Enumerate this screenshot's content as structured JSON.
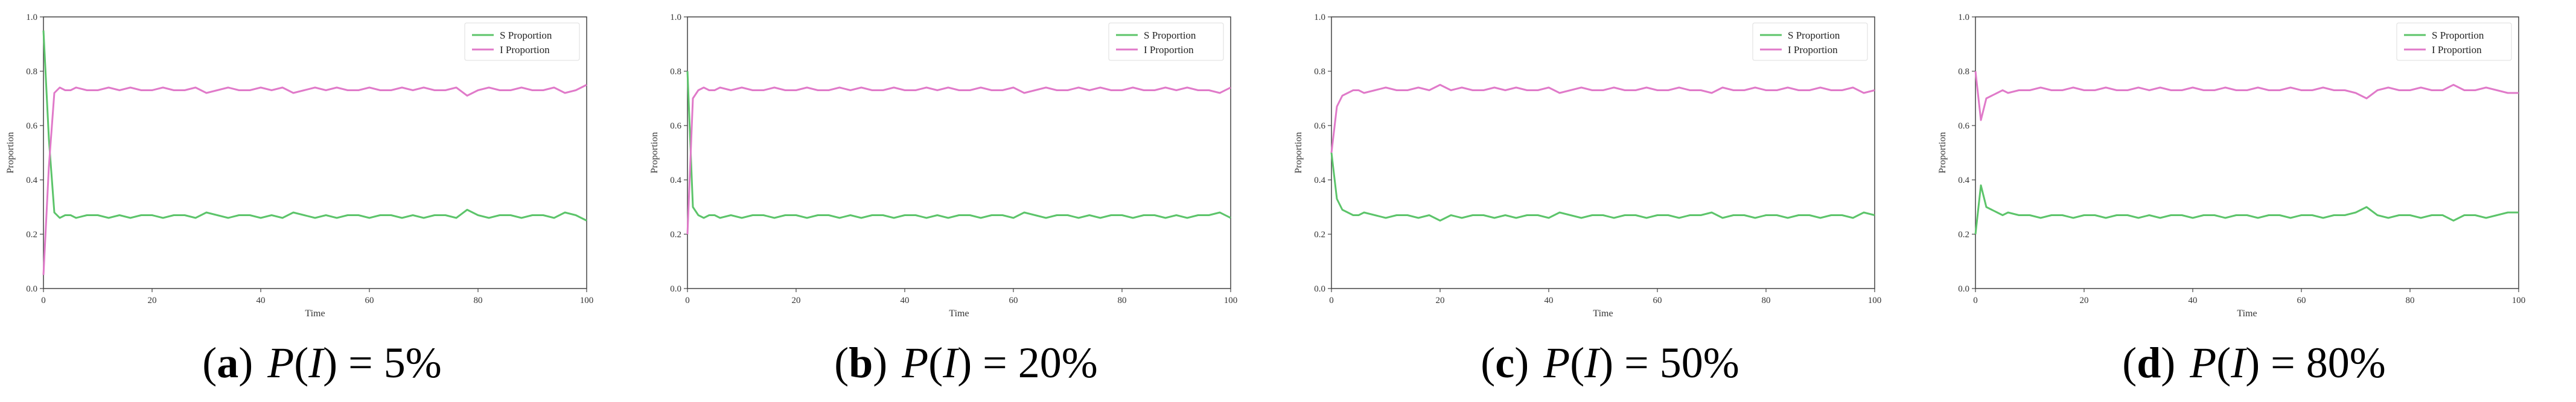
{
  "chart_data": [
    {
      "type": "line",
      "tag": "a",
      "caption": "P(I) = 5%",
      "caption_lhs_func": "P",
      "caption_lhs_arg": "I",
      "caption_rhs": "= 5%",
      "xlabel": "Time",
      "ylabel": "Proportion",
      "xlim": [
        0,
        100
      ],
      "ylim": [
        0.0,
        1.0
      ],
      "xticks": [
        "0",
        "20",
        "40",
        "60",
        "80",
        "100"
      ],
      "yticks": [
        "0.0",
        "0.2",
        "0.4",
        "0.6",
        "0.8",
        "1.0"
      ],
      "legend_position": "top-right",
      "grid": false,
      "series": [
        {
          "name": "S Proportion",
          "color": "#5cc46a",
          "x": [
            0,
            1,
            2,
            3,
            4,
            5,
            6,
            8,
            10,
            12,
            14,
            16,
            18,
            20,
            22,
            24,
            26,
            28,
            30,
            32,
            34,
            36,
            38,
            40,
            42,
            44,
            46,
            48,
            50,
            52,
            54,
            56,
            58,
            60,
            62,
            64,
            66,
            68,
            70,
            72,
            74,
            76,
            78,
            80,
            82,
            84,
            86,
            88,
            90,
            92,
            94,
            96,
            98,
            100
          ],
          "y": [
            0.95,
            0.55,
            0.28,
            0.26,
            0.27,
            0.27,
            0.26,
            0.27,
            0.27,
            0.26,
            0.27,
            0.26,
            0.27,
            0.27,
            0.26,
            0.27,
            0.27,
            0.26,
            0.28,
            0.27,
            0.26,
            0.27,
            0.27,
            0.26,
            0.27,
            0.26,
            0.28,
            0.27,
            0.26,
            0.27,
            0.26,
            0.27,
            0.27,
            0.26,
            0.27,
            0.27,
            0.26,
            0.27,
            0.26,
            0.27,
            0.27,
            0.26,
            0.29,
            0.27,
            0.26,
            0.27,
            0.27,
            0.26,
            0.27,
            0.27,
            0.26,
            0.28,
            0.27,
            0.25
          ]
        },
        {
          "name": "I Proportion",
          "color": "#e07ac9",
          "x": [
            0,
            1,
            2,
            3,
            4,
            5,
            6,
            8,
            10,
            12,
            14,
            16,
            18,
            20,
            22,
            24,
            26,
            28,
            30,
            32,
            34,
            36,
            38,
            40,
            42,
            44,
            46,
            48,
            50,
            52,
            54,
            56,
            58,
            60,
            62,
            64,
            66,
            68,
            70,
            72,
            74,
            76,
            78,
            80,
            82,
            84,
            86,
            88,
            90,
            92,
            94,
            96,
            98,
            100
          ],
          "y": [
            0.05,
            0.45,
            0.72,
            0.74,
            0.73,
            0.73,
            0.74,
            0.73,
            0.73,
            0.74,
            0.73,
            0.74,
            0.73,
            0.73,
            0.74,
            0.73,
            0.73,
            0.74,
            0.72,
            0.73,
            0.74,
            0.73,
            0.73,
            0.74,
            0.73,
            0.74,
            0.72,
            0.73,
            0.74,
            0.73,
            0.74,
            0.73,
            0.73,
            0.74,
            0.73,
            0.73,
            0.74,
            0.73,
            0.74,
            0.73,
            0.73,
            0.74,
            0.71,
            0.73,
            0.74,
            0.73,
            0.73,
            0.74,
            0.73,
            0.73,
            0.74,
            0.72,
            0.73,
            0.75
          ]
        }
      ]
    },
    {
      "type": "line",
      "tag": "b",
      "caption": "P(I) = 20%",
      "caption_lhs_func": "P",
      "caption_lhs_arg": "I",
      "caption_rhs": "= 20%",
      "xlabel": "Time",
      "ylabel": "Proportion",
      "xlim": [
        0,
        100
      ],
      "ylim": [
        0.0,
        1.0
      ],
      "xticks": [
        "0",
        "20",
        "40",
        "60",
        "80",
        "100"
      ],
      "yticks": [
        "0.0",
        "0.2",
        "0.4",
        "0.6",
        "0.8",
        "1.0"
      ],
      "legend_position": "top-right",
      "grid": false,
      "series": [
        {
          "name": "S Proportion",
          "color": "#5cc46a",
          "x": [
            0,
            1,
            2,
            3,
            4,
            5,
            6,
            8,
            10,
            12,
            14,
            16,
            18,
            20,
            22,
            24,
            26,
            28,
            30,
            32,
            34,
            36,
            38,
            40,
            42,
            44,
            46,
            48,
            50,
            52,
            54,
            56,
            58,
            60,
            62,
            64,
            66,
            68,
            70,
            72,
            74,
            76,
            78,
            80,
            82,
            84,
            86,
            88,
            90,
            92,
            94,
            96,
            98,
            100
          ],
          "y": [
            0.8,
            0.3,
            0.27,
            0.26,
            0.27,
            0.27,
            0.26,
            0.27,
            0.26,
            0.27,
            0.27,
            0.26,
            0.27,
            0.27,
            0.26,
            0.27,
            0.27,
            0.26,
            0.27,
            0.26,
            0.27,
            0.27,
            0.26,
            0.27,
            0.27,
            0.26,
            0.27,
            0.26,
            0.27,
            0.27,
            0.26,
            0.27,
            0.27,
            0.26,
            0.28,
            0.27,
            0.26,
            0.27,
            0.27,
            0.26,
            0.27,
            0.26,
            0.27,
            0.27,
            0.26,
            0.27,
            0.27,
            0.26,
            0.27,
            0.26,
            0.27,
            0.27,
            0.28,
            0.26
          ]
        },
        {
          "name": "I Proportion",
          "color": "#e07ac9",
          "x": [
            0,
            1,
            2,
            3,
            4,
            5,
            6,
            8,
            10,
            12,
            14,
            16,
            18,
            20,
            22,
            24,
            26,
            28,
            30,
            32,
            34,
            36,
            38,
            40,
            42,
            44,
            46,
            48,
            50,
            52,
            54,
            56,
            58,
            60,
            62,
            64,
            66,
            68,
            70,
            72,
            74,
            76,
            78,
            80,
            82,
            84,
            86,
            88,
            90,
            92,
            94,
            96,
            98,
            100
          ],
          "y": [
            0.2,
            0.7,
            0.73,
            0.74,
            0.73,
            0.73,
            0.74,
            0.73,
            0.74,
            0.73,
            0.73,
            0.74,
            0.73,
            0.73,
            0.74,
            0.73,
            0.73,
            0.74,
            0.73,
            0.74,
            0.73,
            0.73,
            0.74,
            0.73,
            0.73,
            0.74,
            0.73,
            0.74,
            0.73,
            0.73,
            0.74,
            0.73,
            0.73,
            0.74,
            0.72,
            0.73,
            0.74,
            0.73,
            0.73,
            0.74,
            0.73,
            0.74,
            0.73,
            0.73,
            0.74,
            0.73,
            0.73,
            0.74,
            0.73,
            0.74,
            0.73,
            0.73,
            0.72,
            0.74
          ]
        }
      ]
    },
    {
      "type": "line",
      "tag": "c",
      "caption": "P(I) = 50%",
      "caption_lhs_func": "P",
      "caption_lhs_arg": "I",
      "caption_rhs": "= 50%",
      "xlabel": "Time",
      "ylabel": "Proportion",
      "xlim": [
        0,
        100
      ],
      "ylim": [
        0.0,
        1.0
      ],
      "xticks": [
        "0",
        "20",
        "40",
        "60",
        "80",
        "100"
      ],
      "yticks": [
        "0.0",
        "0.2",
        "0.4",
        "0.6",
        "0.8",
        "1.0"
      ],
      "legend_position": "top-right",
      "grid": false,
      "series": [
        {
          "name": "S Proportion",
          "color": "#5cc46a",
          "x": [
            0,
            1,
            2,
            3,
            4,
            5,
            6,
            8,
            10,
            12,
            14,
            16,
            18,
            20,
            22,
            24,
            26,
            28,
            30,
            32,
            34,
            36,
            38,
            40,
            42,
            44,
            46,
            48,
            50,
            52,
            54,
            56,
            58,
            60,
            62,
            64,
            66,
            68,
            70,
            72,
            74,
            76,
            78,
            80,
            82,
            84,
            86,
            88,
            90,
            92,
            94,
            96,
            98,
            100
          ],
          "y": [
            0.5,
            0.33,
            0.29,
            0.28,
            0.27,
            0.27,
            0.28,
            0.27,
            0.26,
            0.27,
            0.27,
            0.26,
            0.27,
            0.25,
            0.27,
            0.26,
            0.27,
            0.27,
            0.26,
            0.27,
            0.26,
            0.27,
            0.27,
            0.26,
            0.28,
            0.27,
            0.26,
            0.27,
            0.27,
            0.26,
            0.27,
            0.27,
            0.26,
            0.27,
            0.27,
            0.26,
            0.27,
            0.27,
            0.28,
            0.26,
            0.27,
            0.27,
            0.26,
            0.27,
            0.27,
            0.26,
            0.27,
            0.27,
            0.26,
            0.27,
            0.27,
            0.26,
            0.28,
            0.27
          ]
        },
        {
          "name": "I Proportion",
          "color": "#e07ac9",
          "x": [
            0,
            1,
            2,
            3,
            4,
            5,
            6,
            8,
            10,
            12,
            14,
            16,
            18,
            20,
            22,
            24,
            26,
            28,
            30,
            32,
            34,
            36,
            38,
            40,
            42,
            44,
            46,
            48,
            50,
            52,
            54,
            56,
            58,
            60,
            62,
            64,
            66,
            68,
            70,
            72,
            74,
            76,
            78,
            80,
            82,
            84,
            86,
            88,
            90,
            92,
            94,
            96,
            98,
            100
          ],
          "y": [
            0.5,
            0.67,
            0.71,
            0.72,
            0.73,
            0.73,
            0.72,
            0.73,
            0.74,
            0.73,
            0.73,
            0.74,
            0.73,
            0.75,
            0.73,
            0.74,
            0.73,
            0.73,
            0.74,
            0.73,
            0.74,
            0.73,
            0.73,
            0.74,
            0.72,
            0.73,
            0.74,
            0.73,
            0.73,
            0.74,
            0.73,
            0.73,
            0.74,
            0.73,
            0.73,
            0.74,
            0.73,
            0.73,
            0.72,
            0.74,
            0.73,
            0.73,
            0.74,
            0.73,
            0.73,
            0.74,
            0.73,
            0.73,
            0.74,
            0.73,
            0.73,
            0.74,
            0.72,
            0.73
          ]
        }
      ]
    },
    {
      "type": "line",
      "tag": "d",
      "caption": "P(I) = 80%",
      "caption_lhs_func": "P",
      "caption_lhs_arg": "I",
      "caption_rhs": "= 80%",
      "xlabel": "Time",
      "ylabel": "Proportion",
      "xlim": [
        0,
        100
      ],
      "ylim": [
        0.0,
        1.0
      ],
      "xticks": [
        "0",
        "20",
        "40",
        "60",
        "80",
        "100"
      ],
      "yticks": [
        "0.0",
        "0.2",
        "0.4",
        "0.6",
        "0.8",
        "1.0"
      ],
      "legend_position": "top-right",
      "grid": false,
      "series": [
        {
          "name": "S Proportion",
          "color": "#5cc46a",
          "x": [
            0,
            1,
            2,
            3,
            4,
            5,
            6,
            8,
            10,
            12,
            14,
            16,
            18,
            20,
            22,
            24,
            26,
            28,
            30,
            32,
            34,
            36,
            38,
            40,
            42,
            44,
            46,
            48,
            50,
            52,
            54,
            56,
            58,
            60,
            62,
            64,
            66,
            68,
            70,
            72,
            74,
            76,
            78,
            80,
            82,
            84,
            86,
            88,
            90,
            92,
            94,
            96,
            98,
            100
          ],
          "y": [
            0.2,
            0.38,
            0.3,
            0.29,
            0.28,
            0.27,
            0.28,
            0.27,
            0.27,
            0.26,
            0.27,
            0.27,
            0.26,
            0.27,
            0.27,
            0.26,
            0.27,
            0.27,
            0.26,
            0.27,
            0.26,
            0.27,
            0.27,
            0.26,
            0.27,
            0.27,
            0.26,
            0.27,
            0.27,
            0.26,
            0.27,
            0.27,
            0.26,
            0.27,
            0.27,
            0.26,
            0.27,
            0.27,
            0.28,
            0.3,
            0.27,
            0.26,
            0.27,
            0.27,
            0.26,
            0.27,
            0.27,
            0.25,
            0.27,
            0.27,
            0.26,
            0.27,
            0.28,
            0.28
          ]
        },
        {
          "name": "I Proportion",
          "color": "#e07ac9",
          "x": [
            0,
            1,
            2,
            3,
            4,
            5,
            6,
            8,
            10,
            12,
            14,
            16,
            18,
            20,
            22,
            24,
            26,
            28,
            30,
            32,
            34,
            36,
            38,
            40,
            42,
            44,
            46,
            48,
            50,
            52,
            54,
            56,
            58,
            60,
            62,
            64,
            66,
            68,
            70,
            72,
            74,
            76,
            78,
            80,
            82,
            84,
            86,
            88,
            90,
            92,
            94,
            96,
            98,
            100
          ],
          "y": [
            0.8,
            0.62,
            0.7,
            0.71,
            0.72,
            0.73,
            0.72,
            0.73,
            0.73,
            0.74,
            0.73,
            0.73,
            0.74,
            0.73,
            0.73,
            0.74,
            0.73,
            0.73,
            0.74,
            0.73,
            0.74,
            0.73,
            0.73,
            0.74,
            0.73,
            0.73,
            0.74,
            0.73,
            0.73,
            0.74,
            0.73,
            0.73,
            0.74,
            0.73,
            0.73,
            0.74,
            0.73,
            0.73,
            0.72,
            0.7,
            0.73,
            0.74,
            0.73,
            0.73,
            0.74,
            0.73,
            0.73,
            0.75,
            0.73,
            0.73,
            0.74,
            0.73,
            0.72,
            0.72
          ]
        }
      ]
    }
  ]
}
